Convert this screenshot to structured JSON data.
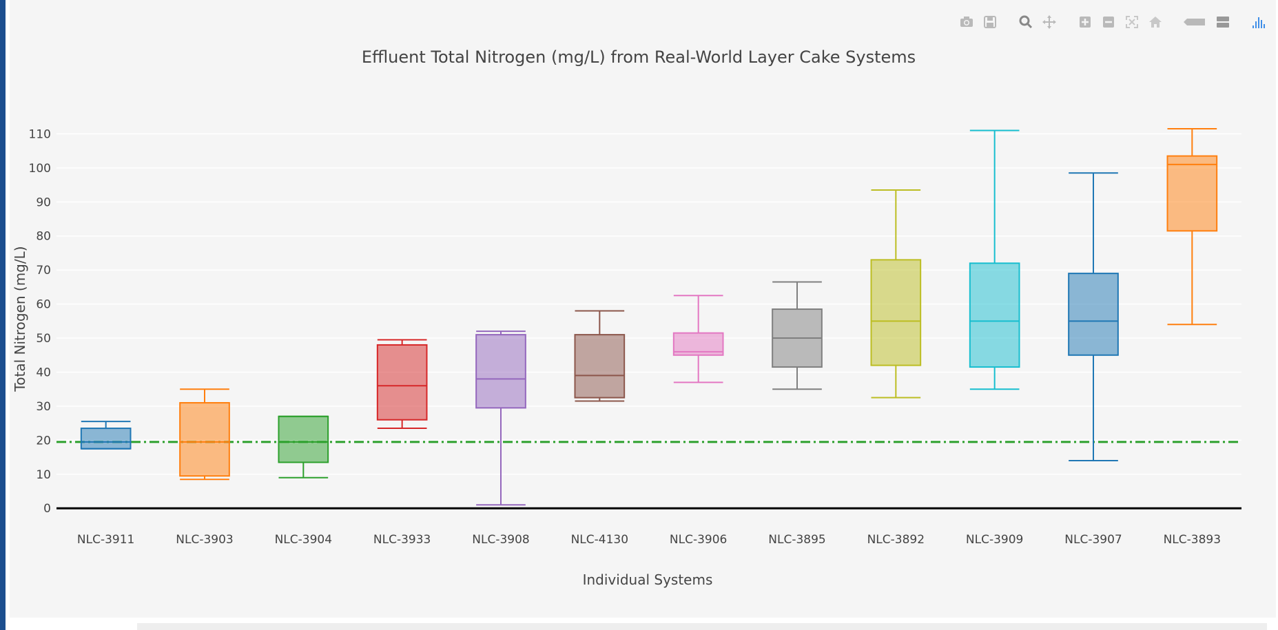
{
  "modebar": {
    "icons": [
      "camera-icon",
      "save-icon",
      "zoom-icon",
      "pan-icon",
      "zoom-in-icon",
      "zoom-out-icon",
      "autoscale-icon",
      "home-icon",
      "hover-closest-icon",
      "hover-compare-icon",
      "plotly-logo-icon"
    ]
  },
  "colors": {
    "panel_bg": "#f5f5f5",
    "reference_line": "#2ca02c",
    "zero_line": "#000000",
    "text": "#444444"
  },
  "chart_data": {
    "type": "box",
    "title": "Effluent Total Nitrogen (mg/L) from Real-World Layer Cake Systems",
    "xlabel": "Individual Systems",
    "ylabel": "Total Nitrogen (mg/L)",
    "ylim": [
      -4,
      120
    ],
    "yticks": [
      0,
      10,
      20,
      30,
      40,
      50,
      60,
      70,
      80,
      90,
      100,
      110
    ],
    "grid": true,
    "reference_line": {
      "y": 19.5,
      "style": "dash-dot",
      "color": "#2ca02c"
    },
    "categories": [
      "NLC-3911",
      "NLC-3903",
      "NLC-3904",
      "NLC-3933",
      "NLC-3908",
      "NLC-4130",
      "NLC-3906",
      "NLC-3895",
      "NLC-3892",
      "NLC-3909",
      "NLC-3907",
      "NLC-3893"
    ],
    "boxes": [
      {
        "min": 17.5,
        "q1": 17.5,
        "median": 19.5,
        "q3": 23.5,
        "max": 25.5,
        "color": "#1f77b4"
      },
      {
        "min": 8.5,
        "q1": 9.5,
        "median": 19.5,
        "q3": 31,
        "max": 35,
        "color": "#ff7f0e"
      },
      {
        "min": 9,
        "q1": 13.5,
        "median": 19.5,
        "q3": 27,
        "max": 27,
        "color": "#2ca02c"
      },
      {
        "min": 23.5,
        "q1": 26,
        "median": 36,
        "q3": 48,
        "max": 49.5,
        "color": "#d62728"
      },
      {
        "min": 1,
        "q1": 29.5,
        "median": 38,
        "q3": 51,
        "max": 52,
        "color": "#9467bd"
      },
      {
        "min": 31.5,
        "q1": 32.5,
        "median": 39,
        "q3": 51,
        "max": 58,
        "color": "#8c564b"
      },
      {
        "min": 37,
        "q1": 45,
        "median": 46,
        "q3": 51.5,
        "max": 62.5,
        "color": "#e377c2"
      },
      {
        "min": 35,
        "q1": 41.5,
        "median": 50,
        "q3": 58.5,
        "max": 66.5,
        "color": "#7f7f7f"
      },
      {
        "min": 32.5,
        "q1": 42,
        "median": 55,
        "q3": 73,
        "max": 93.5,
        "color": "#bcbd22"
      },
      {
        "min": 35,
        "q1": 41.5,
        "median": 55,
        "q3": 72,
        "max": 111,
        "color": "#17becf"
      },
      {
        "min": 14,
        "q1": 45,
        "median": 55,
        "q3": 69,
        "max": 98.5,
        "color": "#1f77b4"
      },
      {
        "min": 54,
        "q1": 81.5,
        "median": 101,
        "q3": 103.5,
        "max": 111.5,
        "color": "#ff7f0e"
      }
    ]
  }
}
